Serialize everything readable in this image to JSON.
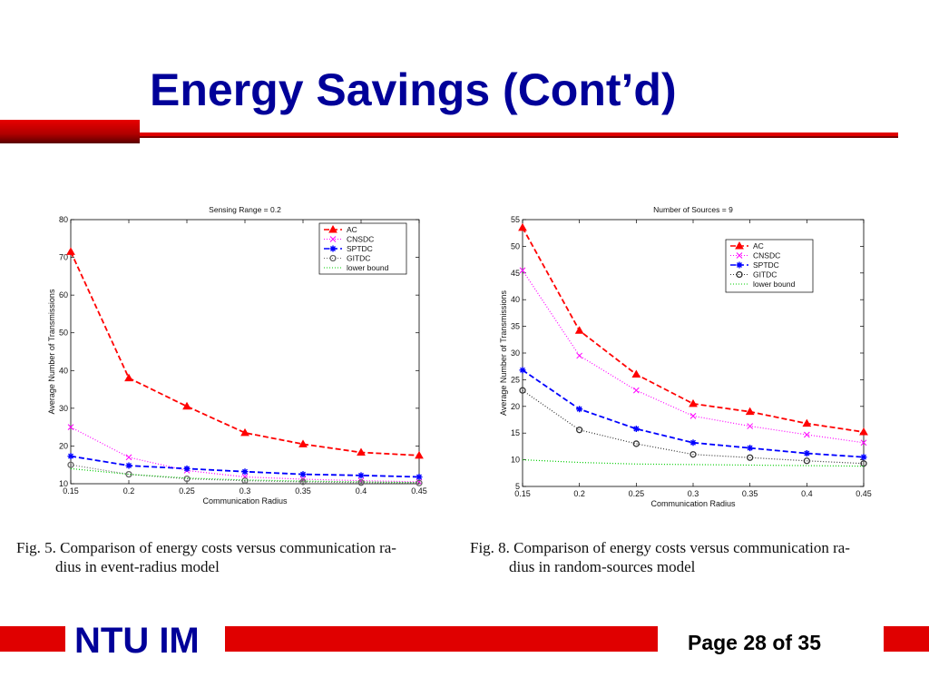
{
  "slide": {
    "title": "Energy Savings (Cont’d)",
    "footer_org": "NTU IM",
    "footer_page": "Page 28 of 35",
    "accent_color": "#e00000",
    "title_color": "#000099"
  },
  "captions": {
    "left_line1": "Fig. 5.   Comparison of energy costs versus communication ra-",
    "left_line2": "dius in event-radius model",
    "right_line1": "Fig. 8.   Comparison of energy costs versus communication ra-",
    "right_line2": "dius in random-sources model"
  },
  "chart_data": [
    {
      "type": "line",
      "title": "Sensing Range = 0.2",
      "xlabel": "Communication Radius",
      "ylabel": "Average Number of Transmissions",
      "x": [
        0.15,
        0.2,
        0.25,
        0.3,
        0.35,
        0.4,
        0.45
      ],
      "xticks": [
        "0.15",
        "0.2",
        "0.25",
        "0.3",
        "0.35",
        "0.4",
        "0.45"
      ],
      "xlim": [
        0.15,
        0.45
      ],
      "ylim": [
        10,
        80
      ],
      "yticks": [
        10,
        20,
        30,
        40,
        50,
        60,
        70,
        80
      ],
      "grid": false,
      "legend_position": "top-right",
      "series": [
        {
          "name": "AC",
          "color": "#ff0000",
          "dash": "6,3",
          "marker": "triangle",
          "values": [
            71.5,
            38,
            30.5,
            23.5,
            20.5,
            18.3,
            17.5
          ]
        },
        {
          "name": "CNSDC",
          "color": "#ff00ff",
          "dash": "1,2",
          "marker": "x",
          "values": [
            25,
            17,
            13.5,
            11.8,
            11.2,
            10.8,
            10.5
          ]
        },
        {
          "name": "SPTDC",
          "color": "#0000ff",
          "dash": "6,3",
          "marker": "star",
          "values": [
            17.3,
            14.8,
            14,
            13.2,
            12.5,
            12.2,
            11.8
          ]
        },
        {
          "name": "GITDC",
          "color": "#666666",
          "dash": "1,2",
          "marker": "circle-open",
          "values": [
            15,
            12.5,
            11.3,
            10.8,
            10.5,
            10.3,
            10.2
          ]
        },
        {
          "name": "lower bound",
          "color": "#00cc00",
          "dash": "1,2",
          "marker": "none",
          "values": [
            14,
            12.5,
            11.5,
            11,
            10.7,
            10.5,
            10.3
          ]
        }
      ]
    },
    {
      "type": "line",
      "title": "Number of Sources = 9",
      "xlabel": "Communication Radius",
      "ylabel": "Average Number of Transmissions",
      "x": [
        0.15,
        0.2,
        0.25,
        0.3,
        0.35,
        0.4,
        0.45
      ],
      "xticks": [
        "0.15",
        "0.2",
        "0.25",
        "0.3",
        "0.35",
        "0.4",
        "0.45"
      ],
      "xlim": [
        0.15,
        0.45
      ],
      "ylim": [
        5,
        55
      ],
      "yticks": [
        5,
        10,
        15,
        20,
        25,
        30,
        35,
        40,
        45,
        50,
        55
      ],
      "grid": false,
      "legend_position": "top-right",
      "series": [
        {
          "name": "AC",
          "color": "#ff0000",
          "dash": "6,3",
          "marker": "triangle",
          "values": [
            53.5,
            34.2,
            26,
            20.5,
            19,
            16.8,
            15.2
          ]
        },
        {
          "name": "CNSDC",
          "color": "#ff00ff",
          "dash": "1,2",
          "marker": "x",
          "values": [
            45.5,
            29.5,
            23,
            18.2,
            16.3,
            14.7,
            13.2
          ]
        },
        {
          "name": "SPTDC",
          "color": "#0000ff",
          "dash": "6,3",
          "marker": "star",
          "values": [
            26.8,
            19.5,
            15.8,
            13.2,
            12.2,
            11.2,
            10.5
          ]
        },
        {
          "name": "GITDC",
          "color": "#333333",
          "dash": "1,2",
          "marker": "circle-open",
          "values": [
            23,
            15.6,
            13,
            11,
            10.4,
            9.8,
            9.3
          ]
        },
        {
          "name": "lower bound",
          "color": "#00cc00",
          "dash": "1,2",
          "marker": "none",
          "values": [
            10,
            9.5,
            9.2,
            9.1,
            9.0,
            8.9,
            8.8
          ]
        }
      ]
    }
  ]
}
